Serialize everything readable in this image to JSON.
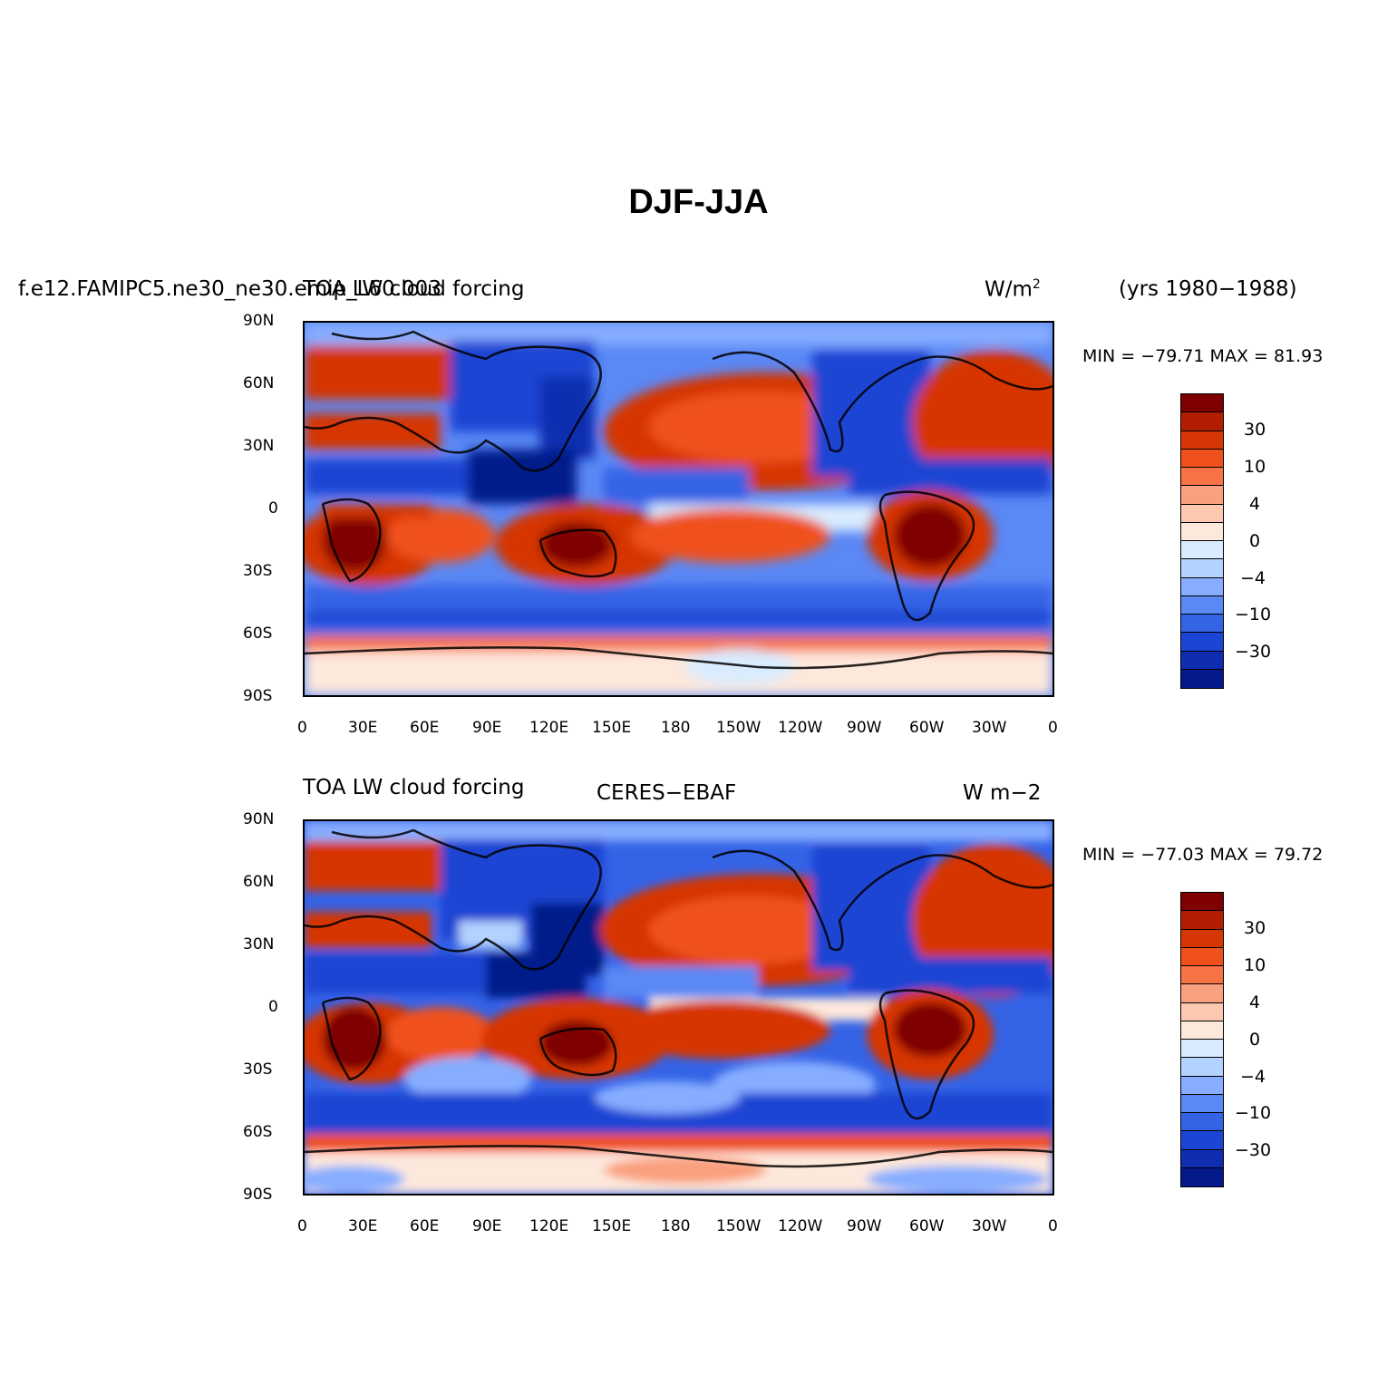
{
  "figure": {
    "title": "DJF-JJA"
  },
  "colorbar": {
    "colors": [
      "#7f0000",
      "#b11e02",
      "#d63604",
      "#f0511b",
      "#f77346",
      "#f9a07e",
      "#fdc8b0",
      "#fde8dc",
      "#d9ecff",
      "#b3d2ff",
      "#86adff",
      "#5a88f5",
      "#3463e6",
      "#1d45d3",
      "#0f2db0",
      "#051a8a"
    ],
    "labels": [
      "30",
      "10",
      "4",
      "0",
      "−4",
      "−10",
      "−30"
    ]
  },
  "axes": {
    "lat_ticks": [
      "90N",
      "60N",
      "30N",
      "0",
      "30S",
      "60S",
      "90S"
    ],
    "lon_ticks": [
      "0",
      "30E",
      "60E",
      "90E",
      "120E",
      "150E",
      "180",
      "150W",
      "120W",
      "90W",
      "60W",
      "30W",
      "0"
    ]
  },
  "panels": [
    {
      "id": "model",
      "case_name": "f.e12.FAMIPC5.ne30_ne30.emip_L60.003",
      "variable": "TOA LW cloud forcing",
      "units": "W/m",
      "units_sup": "2",
      "years": "(yrs 1980−1988)",
      "stats": "MIN = −79.71 MAX =  81.93"
    },
    {
      "id": "obs",
      "variable": "TOA LW cloud forcing",
      "dataset": "CERES−EBAF",
      "units": "W m−2",
      "stats": "MIN = −77.03 MAX =  79.72"
    }
  ]
}
